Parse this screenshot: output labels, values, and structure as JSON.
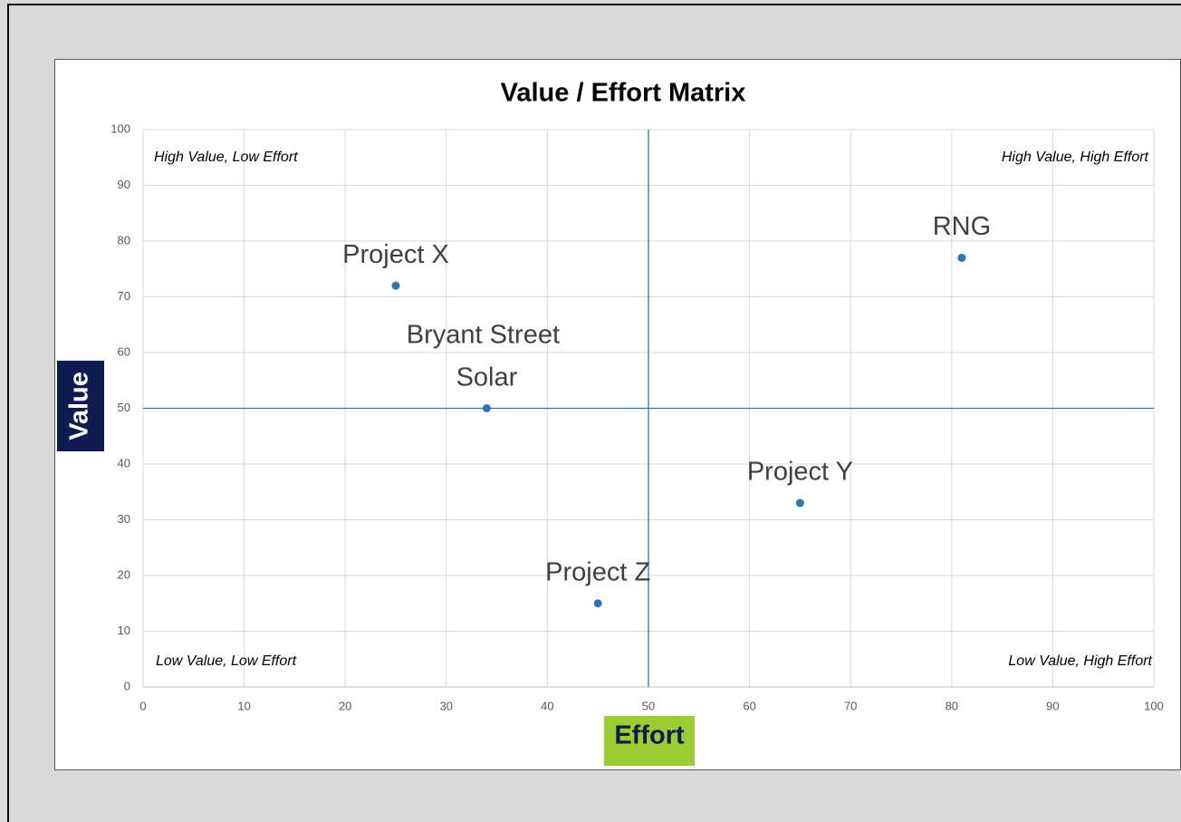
{
  "chart_data": {
    "type": "scatter",
    "title": "Value / Effort Matrix",
    "x_label": "Effort",
    "y_label": "Value",
    "x": [
      25,
      34,
      81,
      65,
      45
    ],
    "values": [
      72,
      50,
      77,
      33,
      15
    ],
    "labels": [
      "Project X",
      "Bryant Street Solar",
      "RNG",
      "Project Y",
      "Project Z"
    ],
    "color": "#2e75b6",
    "xlim": [
      0,
      100
    ],
    "ylim": [
      0,
      100
    ],
    "xticks": [
      0,
      10,
      20,
      30,
      40,
      50,
      60,
      70,
      80,
      90,
      100
    ],
    "yticks": [
      0,
      10,
      20,
      30,
      40,
      50,
      60,
      70,
      80,
      90,
      100
    ],
    "grid": true,
    "reference_lines": {
      "x": 50,
      "y": 50
    },
    "quadrant_labels": {
      "top_left": "High Value, Low Effort",
      "top_right": "High Value, High Effort",
      "bottom_left": "Low Value, Low Effort",
      "bottom_right": "Low Value, High Effort"
    }
  }
}
